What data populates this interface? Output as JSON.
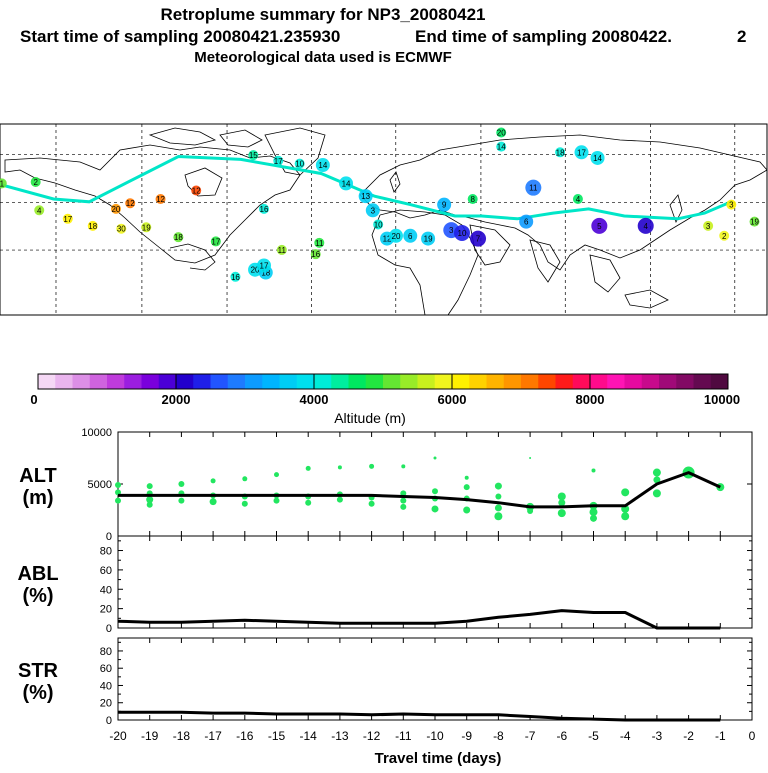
{
  "header": {
    "title": "Retroplume summary for NP3_20080421",
    "start_label": "Start time of sampling 20080421.235930",
    "end_label": "End time of sampling 20080422.",
    "end_suffix": "2",
    "met_label": "Meteorological data used is ECMWF"
  },
  "colors": {
    "colorbar": [
      "#f5d8f5",
      "#eab5ee",
      "#dc8fe6",
      "#cf63df",
      "#bf3bdc",
      "#9b1ee0",
      "#7a00dc",
      "#4b00d6",
      "#2200cc",
      "#1f1fe8",
      "#2255ff",
      "#1e7bff",
      "#0d9bff",
      "#00b5ff",
      "#00cdf5",
      "#00e0ee",
      "#00ecd8",
      "#00ee9e",
      "#00e860",
      "#22e640",
      "#64e632",
      "#98ec28",
      "#c8f01e",
      "#f0f51e",
      "#fff000",
      "#ffd200",
      "#ffb400",
      "#ff9600",
      "#ff7800",
      "#ff4600",
      "#ff1a1a",
      "#ff0a5a",
      "#ff0a8c",
      "#ff14b4",
      "#e60aa0",
      "#c80a8c",
      "#a00a78",
      "#820a64",
      "#640a50",
      "#500a40"
    ],
    "plume": "#22e660",
    "line": "#000000",
    "frame": "#000000"
  },
  "chart_data": [
    {
      "type": "scatter",
      "name": "retroplume-map",
      "title": "Retroplume summary for NP3_20080421",
      "map_labels": [
        {
          "text": "1",
          "lon": -179,
          "lat": 73,
          "alt": 5000
        },
        {
          "text": "2",
          "lon": -160,
          "lat": 74,
          "alt": 4800
        },
        {
          "text": "4",
          "lon": -158,
          "lat": 54,
          "alt": 5300
        },
        {
          "text": "17",
          "lon": -142,
          "lat": 48,
          "alt": 6000
        },
        {
          "text": "18",
          "lon": -128,
          "lat": 43,
          "alt": 6200
        },
        {
          "text": "20",
          "lon": -115,
          "lat": 55,
          "alt": 6800
        },
        {
          "text": "12",
          "lon": -107,
          "lat": 59,
          "alt": 7000
        },
        {
          "text": "30",
          "lon": -112,
          "lat": 41,
          "alt": 5800
        },
        {
          "text": "19",
          "lon": -98,
          "lat": 42,
          "alt": 5500
        },
        {
          "text": "12",
          "lon": -90,
          "lat": 62,
          "alt": 7200
        },
        {
          "text": "12",
          "lon": -70,
          "lat": 68,
          "alt": 7400
        },
        {
          "text": "18",
          "lon": -80,
          "lat": 35,
          "alt": 5200
        },
        {
          "text": "17",
          "lon": -59,
          "lat": 32,
          "alt": 4800
        },
        {
          "text": "16",
          "lon": -32,
          "lat": 55,
          "alt": 4100
        },
        {
          "text": "15",
          "lon": -38,
          "lat": 93,
          "alt": 4400
        },
        {
          "text": "17",
          "lon": -24,
          "lat": 89,
          "alt": 4200
        },
        {
          "text": "10",
          "lon": -12,
          "lat": 87,
          "alt": 4000
        },
        {
          "text": "14",
          "lon": 1,
          "lat": 86,
          "alt": 3900
        },
        {
          "text": "11",
          "lon": -22,
          "lat": 26,
          "alt": 5400
        },
        {
          "text": "16",
          "lon": -3,
          "lat": 23,
          "alt": 5200
        },
        {
          "text": "11",
          "lon": -1,
          "lat": 31,
          "alt": 4900
        },
        {
          "text": "16",
          "lon": -48,
          "lat": 7,
          "alt": 4200
        },
        {
          "text": "20",
          "lon": -37,
          "lat": 12,
          "alt": 3900
        },
        {
          "text": "18",
          "lon": -31,
          "lat": 10,
          "alt": 3600
        },
        {
          "text": "17",
          "lon": -32,
          "lat": 15,
          "alt": 3800
        },
        {
          "text": "14",
          "lon": 14,
          "lat": 73,
          "alt": 3800
        },
        {
          "text": "13",
          "lon": 25,
          "lat": 64,
          "alt": 3700
        },
        {
          "text": "3",
          "lon": 29,
          "lat": 54,
          "alt": 3500
        },
        {
          "text": "10",
          "lon": 32,
          "lat": 44,
          "alt": 4100
        },
        {
          "text": "12",
          "lon": 37,
          "lat": 34,
          "alt": 3600
        },
        {
          "text": "20",
          "lon": 42,
          "lat": 36,
          "alt": 3800
        },
        {
          "text": "6",
          "lon": 50,
          "lat": 36,
          "alt": 3700
        },
        {
          "text": "19",
          "lon": 60,
          "lat": 34,
          "alt": 3500
        },
        {
          "text": "9",
          "lon": 69,
          "lat": 58,
          "alt": 3300
        },
        {
          "text": "8",
          "lon": 85,
          "lat": 62,
          "alt": 4700
        },
        {
          "text": "3",
          "lon": 73,
          "lat": 40,
          "alt": 2500
        },
        {
          "text": "10",
          "lon": 79,
          "lat": 38,
          "alt": 2300
        },
        {
          "text": "7",
          "lon": 88,
          "lat": 34,
          "alt": 2200
        },
        {
          "text": "6",
          "lon": 115,
          "lat": 46,
          "alt": 3000
        },
        {
          "text": "20",
          "lon": 101,
          "lat": 109,
          "alt": 4600
        },
        {
          "text": "14",
          "lon": 101,
          "lat": 99,
          "alt": 4200
        },
        {
          "text": "18",
          "lon": 134,
          "lat": 95,
          "alt": 4000
        },
        {
          "text": "17",
          "lon": 146,
          "lat": 95,
          "alt": 3900
        },
        {
          "text": "14",
          "lon": 155,
          "lat": 91,
          "alt": 3800
        },
        {
          "text": "11",
          "lon": 119,
          "lat": 70,
          "alt": 2800
        },
        {
          "text": "4",
          "lon": 144,
          "lat": 62,
          "alt": 4700
        },
        {
          "text": "5",
          "lon": 156,
          "lat": 43,
          "alt": 1800
        },
        {
          "text": "4",
          "lon": 182,
          "lat": 43,
          "alt": 2000
        },
        {
          "text": "3",
          "lon": 230,
          "lat": 58,
          "alt": 6200
        },
        {
          "text": "3",
          "lon": 217,
          "lat": 43,
          "alt": 5600
        },
        {
          "text": "2",
          "lon": 226,
          "lat": 36,
          "alt": 5800
        },
        {
          "text": "19",
          "lon": 243,
          "lat": 46,
          "alt": 5000
        }
      ]
    },
    {
      "type": "colorbar",
      "name": "altitude-colorbar",
      "xlabel": "Altitude (m)",
      "range": [
        0,
        10000
      ],
      "tick_labels": [
        "0",
        "2000",
        "4000",
        "6000",
        "8000",
        "10000"
      ],
      "ticks": [
        0,
        2000,
        4000,
        6000,
        8000,
        10000
      ]
    },
    {
      "type": "line",
      "name": "alt-panel",
      "ylabel": "ALT",
      "yunit": "(m)",
      "ylim": [
        0,
        10000
      ],
      "ytick_labels": [
        "0",
        "5000",
        "10000"
      ],
      "yticks": [
        0,
        5000,
        10000
      ],
      "x": [
        -20,
        -19,
        -18,
        -17,
        -16,
        -15,
        -14,
        -13,
        -12,
        -11,
        -10,
        -9,
        -8,
        -7,
        -6,
        -5,
        -4,
        -3,
        -2,
        -1
      ],
      "values": [
        3900,
        3900,
        3900,
        3900,
        3900,
        3900,
        3900,
        3900,
        3900,
        3800,
        3700,
        3500,
        3200,
        2800,
        2800,
        2900,
        2900,
        5000,
        6100,
        4700
      ],
      "plume_points": [
        {
          "x": -20,
          "y": 4900,
          "s": 3
        },
        {
          "x": -20,
          "y": 4200,
          "s": 3
        },
        {
          "x": -20,
          "y": 3400,
          "s": 3
        },
        {
          "x": -19,
          "y": 4800,
          "s": 3
        },
        {
          "x": -19,
          "y": 4100,
          "s": 3
        },
        {
          "x": -19,
          "y": 3500,
          "s": 3.5
        },
        {
          "x": -19,
          "y": 3000,
          "s": 3
        },
        {
          "x": -18,
          "y": 5000,
          "s": 3
        },
        {
          "x": -18,
          "y": 4100,
          "s": 3
        },
        {
          "x": -18,
          "y": 3400,
          "s": 3
        },
        {
          "x": -17,
          "y": 5300,
          "s": 2.5
        },
        {
          "x": -17,
          "y": 3900,
          "s": 3
        },
        {
          "x": -17,
          "y": 3300,
          "s": 3.5
        },
        {
          "x": -16,
          "y": 5500,
          "s": 2.5
        },
        {
          "x": -16,
          "y": 3800,
          "s": 3
        },
        {
          "x": -16,
          "y": 3100,
          "s": 3
        },
        {
          "x": -15,
          "y": 5900,
          "s": 2.5
        },
        {
          "x": -15,
          "y": 3900,
          "s": 3
        },
        {
          "x": -15,
          "y": 3400,
          "s": 3
        },
        {
          "x": -14,
          "y": 6500,
          "s": 2.5
        },
        {
          "x": -14,
          "y": 3800,
          "s": 3
        },
        {
          "x": -14,
          "y": 3200,
          "s": 3
        },
        {
          "x": -13,
          "y": 6600,
          "s": 2
        },
        {
          "x": -13,
          "y": 4000,
          "s": 3
        },
        {
          "x": -13,
          "y": 3500,
          "s": 3
        },
        {
          "x": -12,
          "y": 6700,
          "s": 2.5
        },
        {
          "x": -12,
          "y": 3700,
          "s": 3
        },
        {
          "x": -12,
          "y": 3100,
          "s": 3
        },
        {
          "x": -11,
          "y": 6700,
          "s": 2
        },
        {
          "x": -11,
          "y": 4100,
          "s": 3
        },
        {
          "x": -11,
          "y": 3400,
          "s": 3
        },
        {
          "x": -11,
          "y": 2800,
          "s": 3
        },
        {
          "x": -10,
          "y": 7500,
          "s": 1.5
        },
        {
          "x": -10,
          "y": 4300,
          "s": 3
        },
        {
          "x": -10,
          "y": 3600,
          "s": 3
        },
        {
          "x": -10,
          "y": 2600,
          "s": 3.5
        },
        {
          "x": -9,
          "y": 5600,
          "s": 2
        },
        {
          "x": -9,
          "y": 4700,
          "s": 3
        },
        {
          "x": -9,
          "y": 3600,
          "s": 3
        },
        {
          "x": -9,
          "y": 2500,
          "s": 3.5
        },
        {
          "x": -8,
          "y": 4800,
          "s": 3.5
        },
        {
          "x": -8,
          "y": 3800,
          "s": 3
        },
        {
          "x": -8,
          "y": 2700,
          "s": 3.5
        },
        {
          "x": -8,
          "y": 1900,
          "s": 4
        },
        {
          "x": -7,
          "y": 7500,
          "s": 1
        },
        {
          "x": -7,
          "y": 2800,
          "s": 4
        },
        {
          "x": -7,
          "y": 2400,
          "s": 3
        },
        {
          "x": -6,
          "y": 3800,
          "s": 4
        },
        {
          "x": -6,
          "y": 3200,
          "s": 3.5
        },
        {
          "x": -6,
          "y": 2200,
          "s": 4
        },
        {
          "x": -5,
          "y": 6300,
          "s": 2
        },
        {
          "x": -5,
          "y": 2900,
          "s": 4
        },
        {
          "x": -5,
          "y": 2300,
          "s": 4
        },
        {
          "x": -5,
          "y": 1700,
          "s": 3.5
        },
        {
          "x": -4,
          "y": 4200,
          "s": 4
        },
        {
          "x": -4,
          "y": 2600,
          "s": 4
        },
        {
          "x": -4,
          "y": 1900,
          "s": 4
        },
        {
          "x": -3,
          "y": 6100,
          "s": 4
        },
        {
          "x": -3,
          "y": 5400,
          "s": 3.5
        },
        {
          "x": -3,
          "y": 4100,
          "s": 4
        },
        {
          "x": -2,
          "y": 6100,
          "s": 6
        },
        {
          "x": -1,
          "y": 4700,
          "s": 4
        }
      ]
    },
    {
      "type": "line",
      "name": "abl-panel",
      "ylabel": "ABL",
      "yunit": "(%)",
      "ylim": [
        0,
        95
      ],
      "ytick_labels": [
        "0",
        "20",
        "40",
        "60",
        "80"
      ],
      "yticks": [
        0,
        20,
        40,
        60,
        80
      ],
      "x": [
        -20,
        -19,
        -18,
        -17,
        -16,
        -15,
        -14,
        -13,
        -12,
        -11,
        -10,
        -9,
        -8,
        -7,
        -6,
        -5,
        -4,
        -3,
        -2,
        -1
      ],
      "values": [
        7,
        6,
        6,
        7,
        8,
        7,
        6,
        5,
        5,
        5,
        5,
        7,
        11,
        14,
        18,
        16,
        16,
        0,
        0,
        0
      ]
    },
    {
      "type": "line",
      "name": "str-panel",
      "ylabel": "STR",
      "yunit": "(%)",
      "ylim": [
        0,
        95
      ],
      "ytick_labels": [
        "0",
        "20",
        "40",
        "60",
        "80"
      ],
      "yticks": [
        0,
        20,
        40,
        60,
        80
      ],
      "x": [
        -20,
        -19,
        -18,
        -17,
        -16,
        -15,
        -14,
        -13,
        -12,
        -11,
        -10,
        -9,
        -8,
        -7,
        -6,
        -5,
        -4,
        -3,
        -2,
        -1
      ],
      "values": [
        9,
        9,
        9,
        8,
        8,
        7,
        7,
        7,
        6,
        7,
        6,
        6,
        6,
        4,
        2,
        1,
        0,
        0,
        0,
        0
      ],
      "xlabel": "Travel time (days)",
      "xtick_labels": [
        "-20",
        "-19",
        "-18",
        "-17",
        "-16",
        "-15",
        "-14",
        "-13",
        "-12",
        "-11",
        "-10",
        "-9",
        "-8",
        "-7",
        "-6",
        "-5",
        "-4",
        "-3",
        "-2",
        "-1",
        "0"
      ],
      "xticks": [
        -20,
        -19,
        -18,
        -17,
        -16,
        -15,
        -14,
        -13,
        -12,
        -11,
        -10,
        -9,
        -8,
        -7,
        -6,
        -5,
        -4,
        -3,
        -2,
        -1,
        0
      ]
    }
  ]
}
